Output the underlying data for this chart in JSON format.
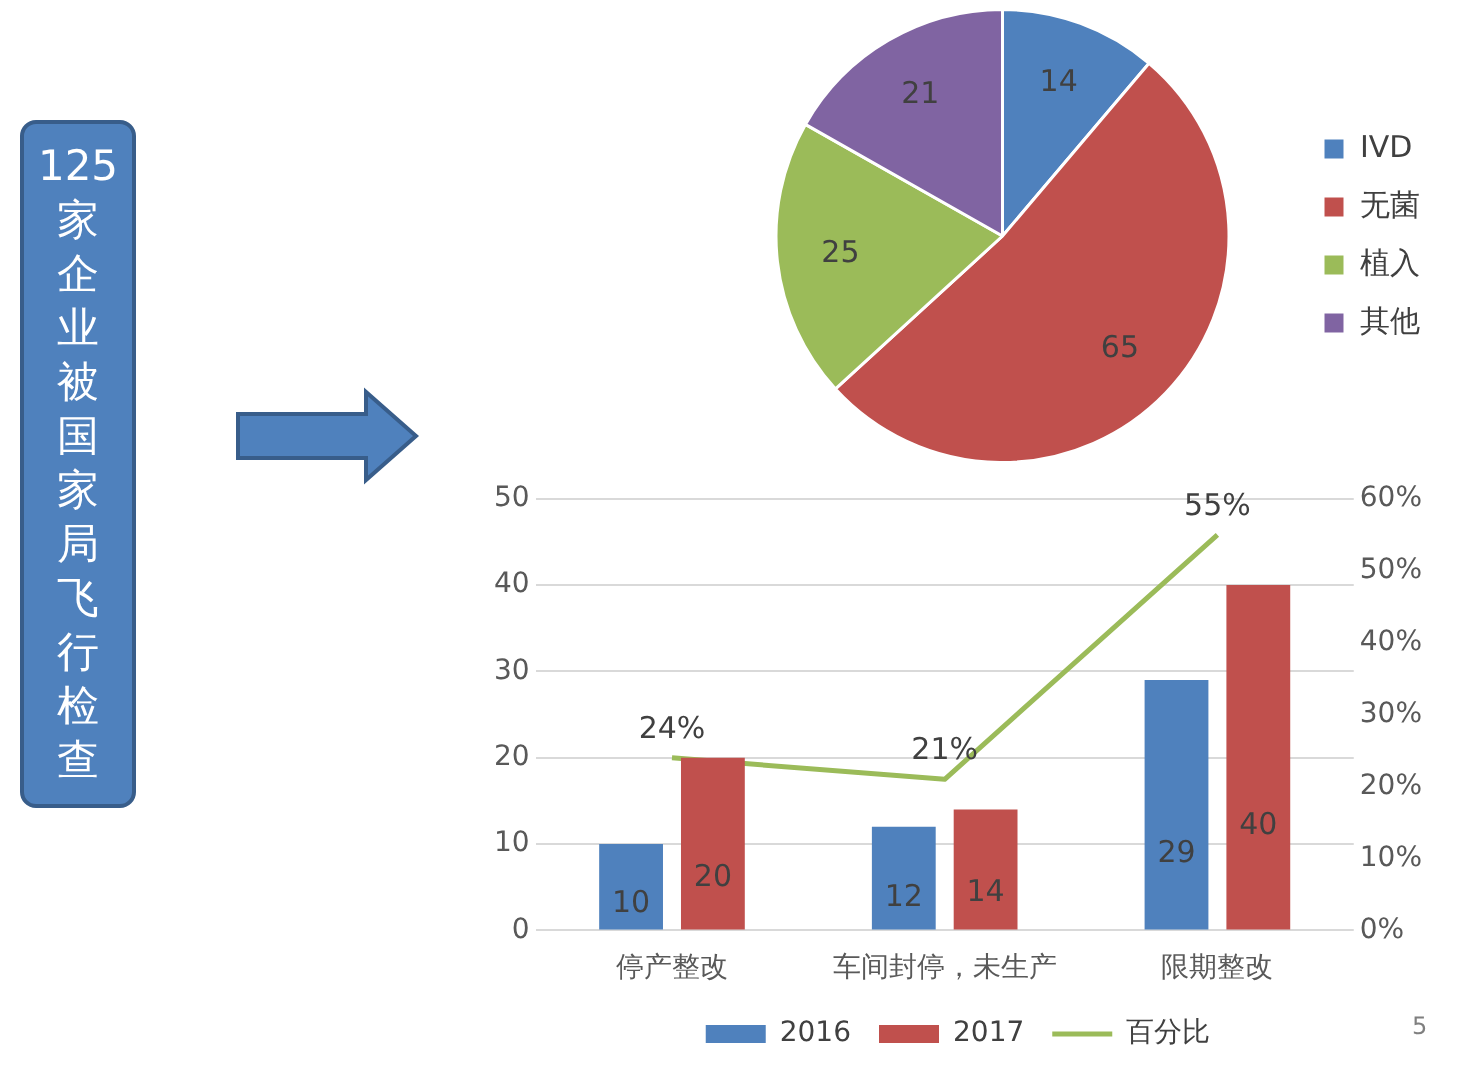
{
  "chart_data": [
    {
      "type": "other",
      "title": "125家企业被国家局飞行检查"
    },
    {
      "type": "pie",
      "categories": [
        "IVD",
        "无菌",
        "植入",
        "其他"
      ],
      "values": [
        14,
        65,
        25,
        21
      ],
      "colors": [
        "#4f81bd",
        "#c0504d",
        "#9bbb59",
        "#8064a2"
      ],
      "data_labels": true,
      "legend": "right"
    },
    {
      "type": "bar",
      "categories": [
        "停产整改",
        "车间封停，未生产",
        "限期整改"
      ],
      "series": [
        {
          "name": "2016",
          "color": "#4f81bd",
          "values": [
            10,
            12,
            29
          ],
          "value_labels": [
            "10",
            "12",
            "29"
          ]
        },
        {
          "name": "2017",
          "color": "#c0504d",
          "values": [
            20,
            14,
            40
          ],
          "value_labels": [
            "20",
            "14",
            "40"
          ]
        },
        {
          "name": "百分比",
          "type": "line",
          "axis": "y2",
          "color": "#9bbb59",
          "values": [
            24,
            21,
            55
          ],
          "value_labels": [
            "24%",
            "21%",
            "55%"
          ],
          "marker": "none"
        }
      ],
      "ylim": [
        0,
        50
      ],
      "yticks": [
        0,
        10,
        20,
        30,
        40,
        50
      ],
      "y2lim": [
        0,
        60
      ],
      "y2ticks": [
        {
          "value": 0,
          "label": "0%"
        },
        {
          "value": 10,
          "label": "10%"
        },
        {
          "value": 20,
          "label": "20%"
        },
        {
          "value": 30,
          "label": "30%"
        },
        {
          "value": 40,
          "label": "40%"
        },
        {
          "value": 50,
          "label": "50%"
        },
        {
          "value": 60,
          "label": "60%"
        }
      ],
      "grid": "y",
      "legend": "bottom",
      "annotations": [
        "5"
      ]
    }
  ]
}
